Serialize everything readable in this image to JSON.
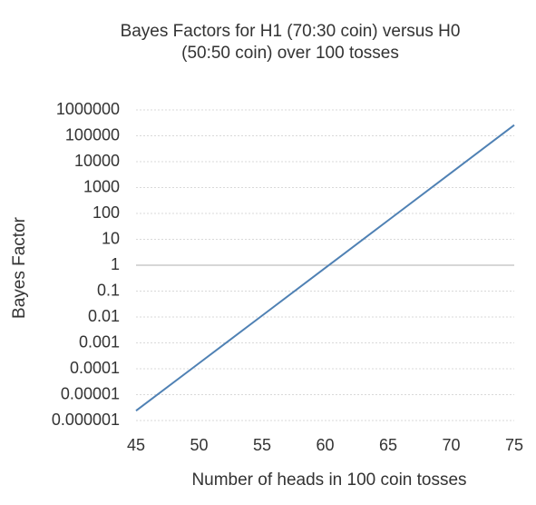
{
  "chart_data": {
    "type": "line",
    "title": [
      "Bayes Factors for H1 (70:30 coin) versus H0",
      "(50:50 coin) over 100 tosses"
    ],
    "x_label": "Number of heads in 100 coin tosses",
    "y_label": "Bayes Factor",
    "x": [
      45,
      50,
      55,
      60,
      65,
      70,
      75
    ],
    "series": [
      {
        "name": "Bayes Factor",
        "color": "#4f81b4",
        "values": [
          2.4e-06,
          0.000164,
          0.0113,
          0.78,
          54,
          3750,
          260000
        ]
      }
    ],
    "xlim": [
      45,
      75
    ],
    "xticks": [
      45,
      50,
      55,
      60,
      65,
      70,
      75
    ],
    "ylim": [
      1e-06,
      1000000
    ],
    "yticks": [
      1e-06,
      1e-05,
      0.0001,
      0.001,
      0.01,
      0.1,
      1,
      10,
      100,
      1000,
      10000,
      100000,
      1000000
    ],
    "y_log": true,
    "grid": true,
    "x_axis_crosses": 1,
    "legend": false
  }
}
